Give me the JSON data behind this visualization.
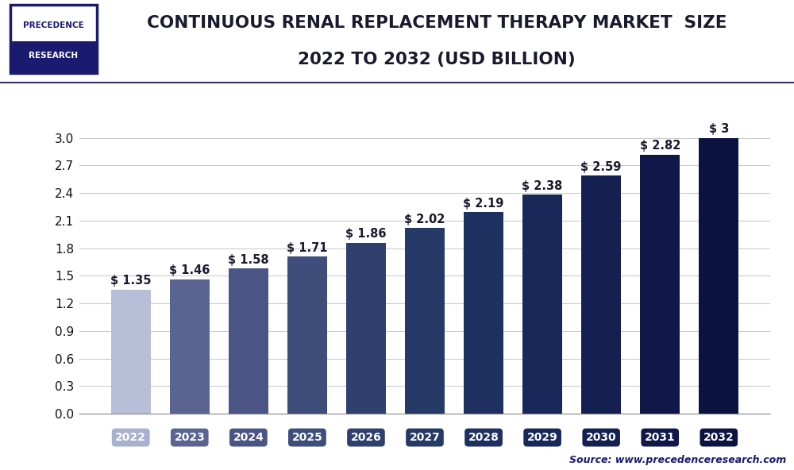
{
  "title_line1": "CONTINUOUS RENAL REPLACEMENT THERAPY MARKET  SIZE",
  "title_line2": "2022 TO 2032 (USD BILLION)",
  "categories": [
    "2022",
    "2023",
    "2024",
    "2025",
    "2026",
    "2027",
    "2028",
    "2029",
    "2030",
    "2031",
    "2032"
  ],
  "values": [
    1.35,
    1.46,
    1.58,
    1.71,
    1.86,
    2.02,
    2.19,
    2.38,
    2.59,
    2.82,
    3.0
  ],
  "bar_colors": [
    "#b8bdd8",
    "#5a6490",
    "#4a5585",
    "#3e4d7a",
    "#2f406e",
    "#263a68",
    "#1e3060",
    "#182858",
    "#132050",
    "#0f1848",
    "#0b1340"
  ],
  "tick_label_bg_2022": "#a8b0d0",
  "yticks": [
    0,
    0.3,
    0.6,
    0.9,
    1.2,
    1.5,
    1.8,
    2.1,
    2.4,
    2.7,
    3.0
  ],
  "ylim": [
    0,
    3.35
  ],
  "source_text": "Source: www.precedenceresearch.com",
  "logo_text_line1": "PRECEDENCE",
  "logo_text_line2": "RESEARCH",
  "logo_color": "#1a1a6e",
  "background_color": "#ffffff",
  "grid_color": "#cccccc",
  "title_color": "#1a1a2e",
  "bar_label_color": "#1a1a2e",
  "bar_label_fontsize": 10.5,
  "title_fontsize": 15.5
}
